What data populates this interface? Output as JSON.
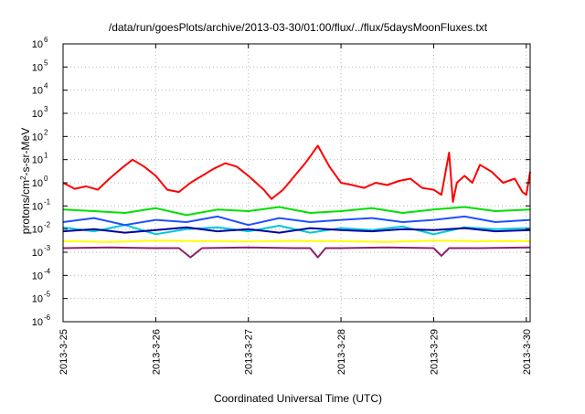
{
  "chart_data": {
    "type": "line",
    "title": "/data/run/goesPlots/archive/2013-03-30/01:00/flux/../flux/5daysMoonFluxes.txt",
    "xlabel": "Coordinated Universal Time (UTC)",
    "ylabel_parts": {
      "prefix": "protons/cm",
      "sup": "2",
      "suffix": "-s-sr-MeV"
    },
    "x_scale": "time",
    "y_scale": "log",
    "xlim": [
      "2013-03-25T00:00",
      "2013-03-30T01:00"
    ],
    "ylim": [
      1e-06,
      1000000.0
    ],
    "grid": true,
    "x_ticks": [
      "2013-3-25",
      "2013-3-26",
      "2013-3-27",
      "2013-3-28",
      "2013-3-29",
      "2013-3-30"
    ],
    "y_ticks": [
      {
        "value": 1e-06,
        "base": "10",
        "exp": "-6"
      },
      {
        "value": 1e-05,
        "base": "10",
        "exp": "-5"
      },
      {
        "value": 0.0001,
        "base": "10",
        "exp": "-4"
      },
      {
        "value": 0.001,
        "base": "10",
        "exp": "-3"
      },
      {
        "value": 0.01,
        "base": "10",
        "exp": "-2"
      },
      {
        "value": 0.1,
        "base": "10",
        "exp": "-1"
      },
      {
        "value": 1,
        "base": "10",
        "exp": "0"
      },
      {
        "value": 10,
        "base": "10",
        "exp": "1"
      },
      {
        "value": 100,
        "base": "10",
        "exp": "2"
      },
      {
        "value": 1000,
        "base": "10",
        "exp": "3"
      },
      {
        "value": 10000,
        "base": "10",
        "exp": "4"
      },
      {
        "value": 100000,
        "base": "10",
        "exp": "5"
      },
      {
        "value": 1000000,
        "base": "10",
        "exp": "6"
      }
    ],
    "series": [
      {
        "color": "#ff0000",
        "x": [
          "2013-03-25T00:00",
          "2013-03-25T03:00",
          "2013-03-25T06:00",
          "2013-03-25T09:00",
          "2013-03-25T12:00",
          "2013-03-25T15:00",
          "2013-03-25T18:00",
          "2013-03-25T21:00",
          "2013-03-26T00:00",
          "2013-03-26T03:00",
          "2013-03-26T06:00",
          "2013-03-26T09:00",
          "2013-03-26T12:00",
          "2013-03-26T15:00",
          "2013-03-26T18:00",
          "2013-03-26T21:00",
          "2013-03-27T00:00",
          "2013-03-27T02:00",
          "2013-03-27T04:00",
          "2013-03-27T06:00",
          "2013-03-27T09:00",
          "2013-03-27T12:00",
          "2013-03-27T15:00",
          "2013-03-27T18:00",
          "2013-03-27T21:00",
          "2013-03-28T00:00",
          "2013-03-28T03:00",
          "2013-03-28T06:00",
          "2013-03-28T09:00",
          "2013-03-28T12:00",
          "2013-03-28T15:00",
          "2013-03-28T18:00",
          "2013-03-28T21:00",
          "2013-03-29T00:00",
          "2013-03-29T02:00",
          "2013-03-29T04:00",
          "2013-03-29T05:00",
          "2013-03-29T06:00",
          "2013-03-29T08:00",
          "2013-03-29T10:00",
          "2013-03-29T12:00",
          "2013-03-29T15:00",
          "2013-03-29T18:00",
          "2013-03-29T21:00",
          "2013-03-29T23:00",
          "2013-03-30T00:00",
          "2013-03-30T01:00"
        ],
        "values": [
          1.0,
          0.55,
          0.7,
          0.5,
          1.5,
          4.0,
          10.0,
          5.0,
          2.0,
          0.5,
          0.4,
          1.0,
          2.0,
          4.0,
          7.0,
          5.0,
          2.0,
          1.0,
          0.5,
          0.2,
          0.5,
          2.0,
          8.0,
          40.0,
          5.0,
          1.0,
          0.8,
          0.6,
          1.0,
          0.8,
          1.2,
          1.5,
          0.6,
          0.5,
          0.3,
          20.0,
          0.15,
          1.0,
          2.0,
          1.0,
          6.0,
          3.0,
          1.0,
          1.5,
          0.4,
          0.3,
          3.0
        ]
      },
      {
        "color": "#00e000",
        "x": [
          "2013-03-25T00:00",
          "2013-03-25T08:00",
          "2013-03-25T16:00",
          "2013-03-26T00:00",
          "2013-03-26T08:00",
          "2013-03-26T16:00",
          "2013-03-27T00:00",
          "2013-03-27T08:00",
          "2013-03-27T16:00",
          "2013-03-28T00:00",
          "2013-03-28T08:00",
          "2013-03-28T16:00",
          "2013-03-29T00:00",
          "2013-03-29T08:00",
          "2013-03-29T16:00",
          "2013-03-30T01:00"
        ],
        "values": [
          0.07,
          0.06,
          0.05,
          0.08,
          0.04,
          0.07,
          0.06,
          0.09,
          0.05,
          0.06,
          0.08,
          0.05,
          0.07,
          0.09,
          0.06,
          0.07
        ]
      },
      {
        "color": "#00c8d8",
        "x": [
          "2013-03-25T00:00",
          "2013-03-25T08:00",
          "2013-03-25T16:00",
          "2013-03-26T00:00",
          "2013-03-26T08:00",
          "2013-03-26T16:00",
          "2013-03-27T00:00",
          "2013-03-27T08:00",
          "2013-03-27T16:00",
          "2013-03-28T00:00",
          "2013-03-28T08:00",
          "2013-03-28T16:00",
          "2013-03-29T00:00",
          "2013-03-29T08:00",
          "2013-03-29T16:00",
          "2013-03-30T01:00"
        ],
        "values": [
          0.012,
          0.008,
          0.015,
          0.006,
          0.01,
          0.012,
          0.008,
          0.014,
          0.007,
          0.011,
          0.009,
          0.013,
          0.006,
          0.012,
          0.01,
          0.011
        ]
      },
      {
        "color": "#1e50ff",
        "x": [
          "2013-03-25T00:00",
          "2013-03-25T08:00",
          "2013-03-25T16:00",
          "2013-03-26T00:00",
          "2013-03-26T08:00",
          "2013-03-26T16:00",
          "2013-03-27T00:00",
          "2013-03-27T08:00",
          "2013-03-27T16:00",
          "2013-03-28T00:00",
          "2013-03-28T08:00",
          "2013-03-28T16:00",
          "2013-03-29T00:00",
          "2013-03-29T08:00",
          "2013-03-29T16:00",
          "2013-03-30T01:00"
        ],
        "values": [
          0.02,
          0.03,
          0.015,
          0.025,
          0.02,
          0.035,
          0.015,
          0.03,
          0.02,
          0.025,
          0.03,
          0.02,
          0.025,
          0.035,
          0.02,
          0.025
        ]
      },
      {
        "color": "#0000a0",
        "x": [
          "2013-03-25T00:00",
          "2013-03-25T08:00",
          "2013-03-25T16:00",
          "2013-03-26T00:00",
          "2013-03-26T08:00",
          "2013-03-26T16:00",
          "2013-03-27T00:00",
          "2013-03-27T08:00",
          "2013-03-27T16:00",
          "2013-03-28T00:00",
          "2013-03-28T08:00",
          "2013-03-28T16:00",
          "2013-03-29T00:00",
          "2013-03-29T08:00",
          "2013-03-29T16:00",
          "2013-03-30T01:00"
        ],
        "values": [
          0.008,
          0.01,
          0.007,
          0.009,
          0.012,
          0.008,
          0.01,
          0.007,
          0.011,
          0.009,
          0.008,
          0.01,
          0.009,
          0.011,
          0.008,
          0.009
        ]
      },
      {
        "color": "#ffff00",
        "x": [
          "2013-03-25T00:00",
          "2013-03-25T12:00",
          "2013-03-26T00:00",
          "2013-03-26T12:00",
          "2013-03-27T00:00",
          "2013-03-27T12:00",
          "2013-03-28T00:00",
          "2013-03-28T12:00",
          "2013-03-29T00:00",
          "2013-03-29T12:00",
          "2013-03-30T01:00"
        ],
        "values": [
          0.003,
          0.0028,
          0.0032,
          0.003,
          0.0029,
          0.0031,
          0.003,
          0.0028,
          0.0032,
          0.003,
          0.003
        ]
      },
      {
        "color": "#8b2070",
        "x": [
          "2013-03-25T00:00",
          "2013-03-25T12:00",
          "2013-03-25T23:00",
          "2013-03-26T06:00",
          "2013-03-26T09:00",
          "2013-03-26T12:00",
          "2013-03-27T00:00",
          "2013-03-27T12:00",
          "2013-03-27T16:00",
          "2013-03-27T18:00",
          "2013-03-27T20:00",
          "2013-03-28T00:00",
          "2013-03-28T12:00",
          "2013-03-29T00:00",
          "2013-03-29T02:00",
          "2013-03-29T04:00",
          "2013-03-29T12:00",
          "2013-03-30T01:00"
        ],
        "values": [
          0.0015,
          0.0016,
          0.0015,
          0.0015,
          0.0006,
          0.0015,
          0.0016,
          0.0015,
          0.0015,
          0.0006,
          0.0015,
          0.0015,
          0.0016,
          0.0015,
          0.0007,
          0.0015,
          0.0015,
          0.0016
        ]
      }
    ]
  }
}
